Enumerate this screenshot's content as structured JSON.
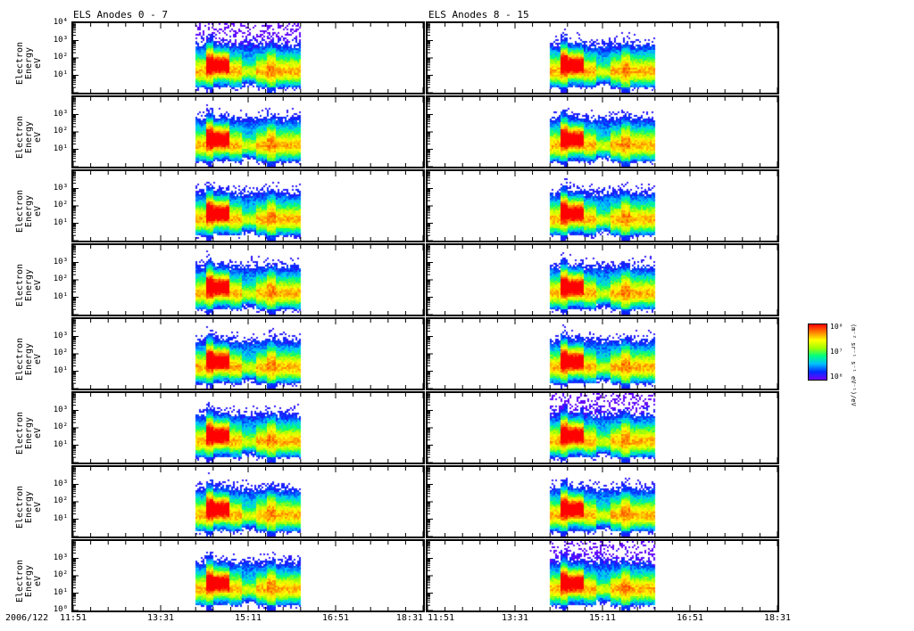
{
  "chart_data": {
    "type": "heatmap",
    "date": "2006/122",
    "titles": [
      "ELS Anodes 0 - 7",
      "ELS Anodes 8 - 15"
    ],
    "ylabel": "Electron Energy",
    "yunit": "eV",
    "ylim_log10": [
      0,
      4
    ],
    "y_tick_labels": [
      "10⁰",
      "10¹",
      "10²",
      "10³",
      "10⁴"
    ],
    "x_tick_labels": [
      "11:51",
      "13:31",
      "15:11",
      "16:51",
      "18:31"
    ],
    "xlim_minutes_from_1151": [
      0,
      400
    ],
    "data_span_minutes": [
      140,
      260
    ],
    "features": {
      "core_energy_log10": 1.2,
      "hot_interval_minutes": [
        150,
        178
      ],
      "hot_energy_log10": 1.5,
      "dip_minute": 200,
      "bump_minute": 225
    },
    "panels_per_column": 8,
    "colorbar": {
      "label": "(m⁻² sr⁻¹ s⁻¹ eV⁻¹)/eV",
      "ticks": [
        "10⁸",
        "10⁷",
        "10⁶"
      ]
    }
  }
}
